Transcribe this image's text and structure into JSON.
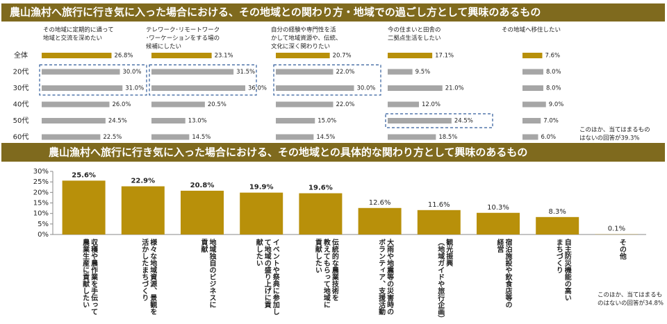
{
  "header": {
    "title": "農山漁村へ旅行に行き気に入った場合における、その地域との関わり方・地域での過ごし方として興味のあるもの",
    "note": [
      "このほか、当てはまるもの",
      "はないの回答が39.3%"
    ]
  },
  "chart_data": [
    {
      "type": "hbar",
      "title": [
        "その地域に定期的に通って",
        "地域と交流を深めたい"
      ],
      "categories": [
        "全体",
        "20代",
        "30代",
        "40代",
        "50代",
        "60代"
      ],
      "values": [
        26.8,
        30.0,
        31.0,
        26.0,
        24.5,
        22.5
      ],
      "value_labels": [
        "26.8%",
        "30.0%",
        "31.0%",
        "26.0%",
        "24.5%",
        "22.5%"
      ],
      "xlim": [
        0,
        40
      ],
      "color": "#a6a6a6",
      "total_color": "#b8900a",
      "highlight": [
        1,
        2
      ]
    },
    {
      "type": "hbar",
      "title": [
        "テレワーク･リモートワーク",
        "･ワーケーションをする場の",
        "候補にしたい"
      ],
      "values": [
        23.1,
        31.5,
        36.0,
        20.5,
        13.0,
        14.5
      ],
      "value_labels": [
        "23.1%",
        "31.5%",
        "36.0%",
        "20.5%",
        "13.0%",
        "14.5%"
      ],
      "xlim": [
        0,
        40
      ],
      "color": "#a6a6a6",
      "total_color": "#b8900a",
      "highlight": [
        1,
        2
      ]
    },
    {
      "type": "hbar",
      "title": [
        "自分の経験や専門性を活",
        "かして地域資源や、伝統、",
        "文化に深く関わりたい"
      ],
      "values": [
        20.7,
        22.0,
        30.0,
        22.0,
        15.0,
        14.5
      ],
      "value_labels": [
        "20.7%",
        "22.0%",
        "30.0%",
        "22.0%",
        "15.0%",
        "14.5%"
      ],
      "xlim": [
        0,
        40
      ],
      "color": "#a6a6a6",
      "total_color": "#b8900a",
      "highlight": [
        1,
        2
      ]
    },
    {
      "type": "hbar",
      "title": [
        "今の住まいと田舎の",
        "二拠点生活をしたい"
      ],
      "values": [
        17.1,
        9.5,
        21.0,
        12.0,
        24.5,
        18.5
      ],
      "value_labels": [
        "17.1%",
        "9.5%",
        "21.0%",
        "12.0%",
        "24.5%",
        "18.5%"
      ],
      "xlim": [
        0,
        40
      ],
      "color": "#a6a6a6",
      "total_color": "#b8900a",
      "highlight": [
        4
      ]
    },
    {
      "type": "hbar",
      "title": [
        "その地域へ移住したい"
      ],
      "values": [
        7.6,
        8.0,
        8.0,
        9.0,
        7.0,
        6.0
      ],
      "value_labels": [
        "7.6%",
        "8.0%",
        "8.0%",
        "9.0%",
        "7.0%",
        "6.0%"
      ],
      "xlim": [
        0,
        40
      ],
      "color": "#a6a6a6",
      "total_color": "#b8900a",
      "highlight": []
    },
    {
      "type": "bar",
      "title": "農山漁村へ旅行に行き気に入った場合における、その地域との具体的な関わり方として興味のあるもの",
      "categories": [
        [
          "収穫や農作業を手伝って",
          "農業生産に貢献したい"
        ],
        [
          "様々な地域資源、景観を",
          "活かしたまちづくり"
        ],
        [
          "地域独自のビジネスに",
          "貢献"
        ],
        [
          "イベントや祭典に参加し",
          "て地域の盛り上げに貢",
          "献したい"
        ],
        [
          "伝統的な農業技術を",
          "教えてもらって地域に",
          "貢献したい"
        ],
        [
          "大雨や地震等の災害時の",
          "ボランティア、支援活動"
        ],
        [
          "観光振興",
          "（地域ガイドや旅行企画）"
        ],
        [
          "宿泊施設や飲食店等の",
          "経営"
        ],
        [
          "自主防災機能の高い",
          "まちづくり"
        ],
        [
          "その他"
        ]
      ],
      "values": [
        25.6,
        22.9,
        20.8,
        19.9,
        19.6,
        12.6,
        11.6,
        10.3,
        8.3,
        0.1
      ],
      "value_labels": [
        "25.6%",
        "22.9%",
        "20.8%",
        "19.9%",
        "19.6%",
        "12.6%",
        "11.6%",
        "10.3%",
        "8.3%",
        "0.1%"
      ],
      "color": "#b8900a",
      "ylim": [
        0,
        30
      ],
      "yticks": [
        {
          "value": 0,
          "label": "0%"
        },
        {
          "value": 5,
          "label": "5%"
        },
        {
          "value": 10,
          "label": "10%"
        },
        {
          "value": 15,
          "label": "15%"
        },
        {
          "value": 20,
          "label": "20%"
        },
        {
          "value": 25,
          "label": "25%"
        },
        {
          "value": 30,
          "label": "30%"
        }
      ],
      "note": [
        "このほか、当てはまるも",
        "のはないの回答が34.8%"
      ]
    }
  ]
}
